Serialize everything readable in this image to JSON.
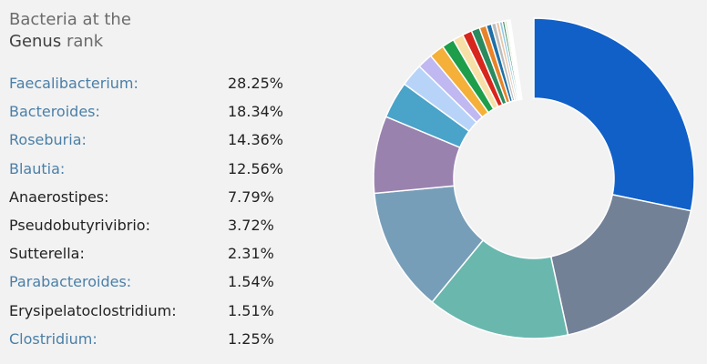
{
  "header": {
    "line1": "Bacteria at the",
    "rank_name": "Genus",
    "rank_suffix": " rank"
  },
  "legend": [
    {
      "name": "Faecalibacterium:",
      "pct": "28.25%",
      "link": true
    },
    {
      "name": "Bacteroides:",
      "pct": "18.34%",
      "link": true
    },
    {
      "name": "Roseburia:",
      "pct": "14.36%",
      "link": true
    },
    {
      "name": "Blautia:",
      "pct": "12.56%",
      "link": true
    },
    {
      "name": "Anaerostipes:",
      "pct": "7.79%",
      "link": false
    },
    {
      "name": "Pseudobutyrivibrio:",
      "pct": "3.72%",
      "link": false
    },
    {
      "name": "Sutterella:",
      "pct": "2.31%",
      "link": false
    },
    {
      "name": "Parabacteroides:",
      "pct": "1.54%",
      "link": true
    },
    {
      "name": "Erysipelatoclostridium:",
      "pct": "1.51%",
      "link": false
    },
    {
      "name": "Clostridium:",
      "pct": "1.25%",
      "link": true
    }
  ],
  "chart_data": {
    "type": "pie",
    "style": "donut",
    "title": "Bacteria at the Genus rank",
    "categories": [
      "Faecalibacterium",
      "Bacteroides",
      "Roseburia",
      "Blautia",
      "Anaerostipes",
      "Pseudobutyrivibrio",
      "Sutterella",
      "Parabacteroides",
      "Erysipelatoclostridium",
      "Clostridium"
    ],
    "values": [
      28.25,
      18.34,
      14.36,
      12.56,
      7.79,
      3.72,
      2.31,
      1.54,
      1.51,
      1.25
    ],
    "colors": [
      "#1060c8",
      "#738197",
      "#6ab7ae",
      "#779eb8",
      "#9a82ae",
      "#4aa3c8",
      "#b7d4f8",
      "#c0b8f0",
      "#f4b038",
      "#1e9e4a"
    ],
    "minor_slices": [
      1.05,
      0.95,
      0.85,
      0.7,
      0.55,
      0.45,
      0.35,
      0.3,
      0.25,
      0.2,
      0.15,
      0.1,
      0.1
    ],
    "minor_colors": [
      "#f7e0a8",
      "#d8261c",
      "#2b8a5e",
      "#e8832a",
      "#1e6fa8",
      "#bdbdbd",
      "#e8c6a8",
      "#8fc8e8",
      "#4a8f6a",
      "#c8d8a8",
      "#a8c8e8",
      "#d8a8c8",
      "#e8e8c8"
    ]
  }
}
